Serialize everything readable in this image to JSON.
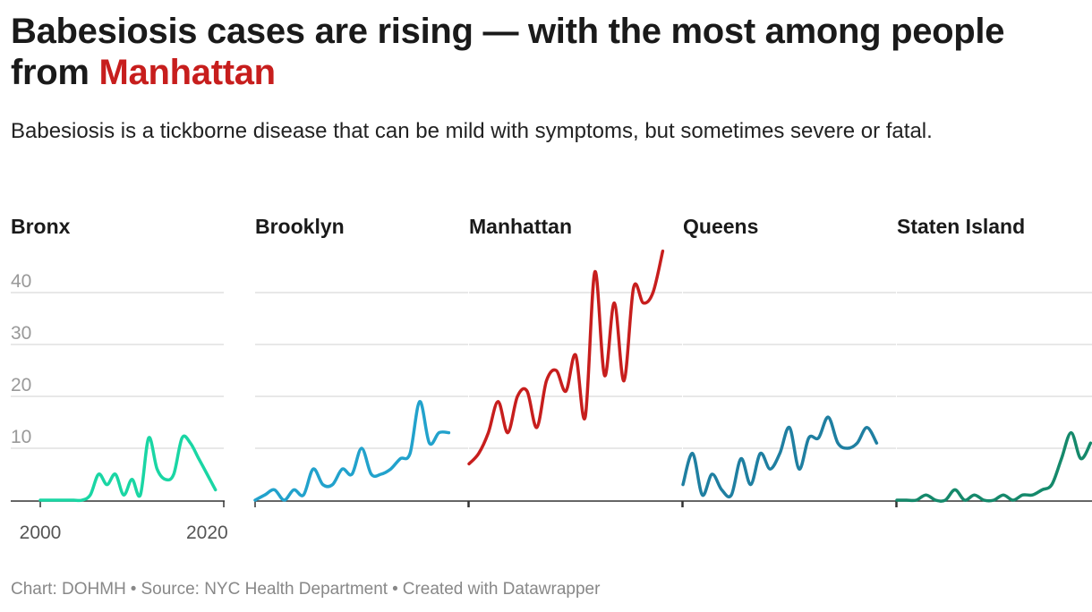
{
  "title": {
    "text": "Babesiosis cases are rising — with the most among people from",
    "highlight": "Manhattan"
  },
  "subtitle": "Babesiosis is a tickborne disease that can be mild with symptoms, but sometimes severe or fatal.",
  "colors": {
    "Bronx": "#1ad6a4",
    "Brooklyn": "#22a2cc",
    "Manhattan": "#c71e1d",
    "Queens": "#1f7fa1",
    "Staten Island": "#15896b",
    "gridline": "#e0e0e0",
    "axis": "#333333",
    "tick_label": "#999999"
  },
  "chart_data": {
    "type": "line",
    "layout": "small-multiples",
    "x": [
      2000,
      2001,
      2002,
      2003,
      2004,
      2005,
      2006,
      2007,
      2008,
      2009,
      2010,
      2011,
      2012,
      2013,
      2014,
      2015,
      2016,
      2017,
      2018,
      2019,
      2020,
      2021,
      2022
    ],
    "xticks": [
      2000,
      2020
    ],
    "ylim": [
      0,
      45
    ],
    "yticks": [
      10,
      20,
      30,
      40
    ],
    "grid": true,
    "series": [
      {
        "name": "Bronx",
        "values": [
          0,
          0,
          0,
          0,
          0,
          0,
          1,
          5,
          3,
          5,
          1,
          4,
          1,
          12,
          6,
          4,
          5,
          12,
          11,
          8,
          5,
          2,
          null
        ]
      },
      {
        "name": "Brooklyn",
        "values": [
          0,
          1,
          2,
          0,
          2,
          1,
          6,
          3,
          3,
          6,
          5,
          10,
          5,
          5,
          6,
          8,
          9,
          19,
          11,
          13,
          13,
          null,
          null
        ]
      },
      {
        "name": "Manhattan",
        "values": [
          7,
          9,
          13,
          19,
          13,
          20,
          21,
          14,
          23,
          25,
          21,
          28,
          16,
          44,
          24,
          38,
          23,
          41,
          38,
          40,
          48,
          null,
          null
        ]
      },
      {
        "name": "Queens",
        "values": [
          3,
          9,
          1,
          5,
          2,
          1,
          8,
          3,
          9,
          6,
          9,
          14,
          6,
          12,
          12,
          16,
          11,
          10,
          11,
          14,
          11,
          null,
          null
        ]
      },
      {
        "name": "Staten Island",
        "values": [
          0,
          0,
          0,
          1,
          0,
          0,
          2,
          0,
          1,
          0,
          0,
          1,
          0,
          1,
          1,
          2,
          3,
          8,
          13,
          8,
          11,
          null,
          null
        ]
      }
    ]
  },
  "footer": {
    "chart_by": "Chart: DOHMH",
    "source": "Source: NYC Health Department",
    "created": "Created with Datawrapper",
    "separator": "•"
  }
}
